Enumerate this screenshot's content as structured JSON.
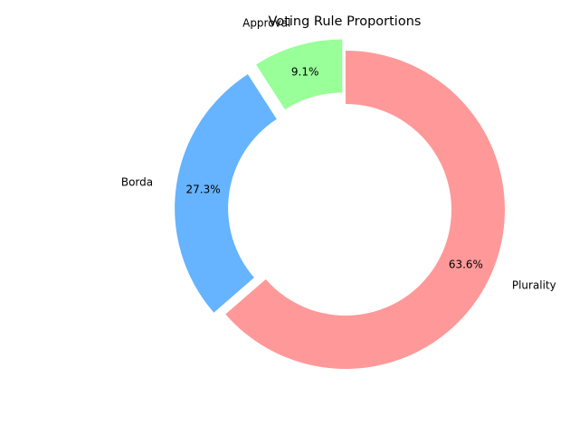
{
  "chart_data": {
    "type": "pie",
    "donut": true,
    "title": "Voting Rule Proportions",
    "labels": [
      "Plurality",
      "Borda",
      "Approval"
    ],
    "values": [
      63.6,
      27.3,
      9.1
    ],
    "percent_labels": [
      "63.6%",
      "27.3%",
      "9.1%"
    ],
    "colors": [
      "#ff9999",
      "#66b3ff",
      "#99ff99"
    ],
    "exploded": [
      false,
      true,
      true
    ],
    "start_angle_deg": 90,
    "direction": "clockwise"
  }
}
